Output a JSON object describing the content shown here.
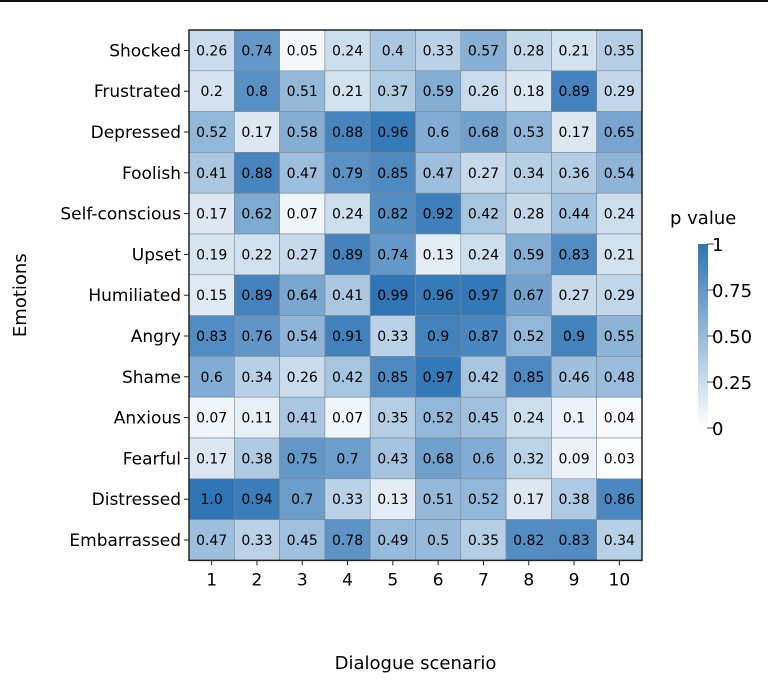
{
  "chart_data": {
    "type": "heatmap",
    "xlabel": "Dialogue scenario",
    "ylabel": "Emotions",
    "x_categories": [
      "1",
      "2",
      "3",
      "4",
      "5",
      "6",
      "7",
      "8",
      "9",
      "10"
    ],
    "y_categories": [
      "Shocked",
      "Frustrated",
      "Depressed",
      "Foolish",
      "Self-conscious",
      "Upset",
      "Humiliated",
      "Angry",
      "Shame",
      "Anxious",
      "Fearful",
      "Distressed",
      "Embarrassed"
    ],
    "values": [
      [
        "0.26",
        "0.74",
        "0.05",
        "0.24",
        "0.4",
        "0.33",
        "0.57",
        "0.28",
        "0.21",
        "0.35"
      ],
      [
        "0.2",
        "0.8",
        "0.51",
        "0.21",
        "0.37",
        "0.59",
        "0.26",
        "0.18",
        "0.89",
        "0.29"
      ],
      [
        "0.52",
        "0.17",
        "0.58",
        "0.88",
        "0.96",
        "0.6",
        "0.68",
        "0.53",
        "0.17",
        "0.65"
      ],
      [
        "0.41",
        "0.88",
        "0.47",
        "0.79",
        "0.85",
        "0.47",
        "0.27",
        "0.34",
        "0.36",
        "0.54"
      ],
      [
        "0.17",
        "0.62",
        "0.07",
        "0.24",
        "0.82",
        "0.92",
        "0.42",
        "0.28",
        "0.44",
        "0.24"
      ],
      [
        "0.19",
        "0.22",
        "0.27",
        "0.89",
        "0.74",
        "0.13",
        "0.24",
        "0.59",
        "0.83",
        "0.21"
      ],
      [
        "0.15",
        "0.89",
        "0.64",
        "0.41",
        "0.99",
        "0.96",
        "0.97",
        "0.67",
        "0.27",
        "0.29"
      ],
      [
        "0.83",
        "0.76",
        "0.54",
        "0.91",
        "0.33",
        "0.9",
        "0.87",
        "0.52",
        "0.9",
        "0.55"
      ],
      [
        "0.6",
        "0.34",
        "0.26",
        "0.42",
        "0.85",
        "0.97",
        "0.42",
        "0.85",
        "0.46",
        "0.48"
      ],
      [
        "0.07",
        "0.11",
        "0.41",
        "0.07",
        "0.35",
        "0.52",
        "0.45",
        "0.24",
        "0.1",
        "0.04"
      ],
      [
        "0.17",
        "0.38",
        "0.75",
        "0.7",
        "0.43",
        "0.68",
        "0.6",
        "0.32",
        "0.09",
        "0.03"
      ],
      [
        "1.0",
        "0.94",
        "0.7",
        "0.33",
        "0.13",
        "0.51",
        "0.52",
        "0.17",
        "0.38",
        "0.86"
      ],
      [
        "0.47",
        "0.33",
        "0.45",
        "0.78",
        "0.49",
        "0.5",
        "0.35",
        "0.82",
        "0.83",
        "0.34"
      ]
    ],
    "colorbar": {
      "title": "p value",
      "range": [
        0,
        1
      ],
      "ticks": [
        "0",
        "0.25",
        "0.50",
        "0.75",
        "1"
      ],
      "tick_values": [
        0,
        0.25,
        0.5,
        0.75,
        1
      ],
      "color_low": "#ffffff",
      "color_high": "#2f74b5"
    },
    "grid": true
  }
}
